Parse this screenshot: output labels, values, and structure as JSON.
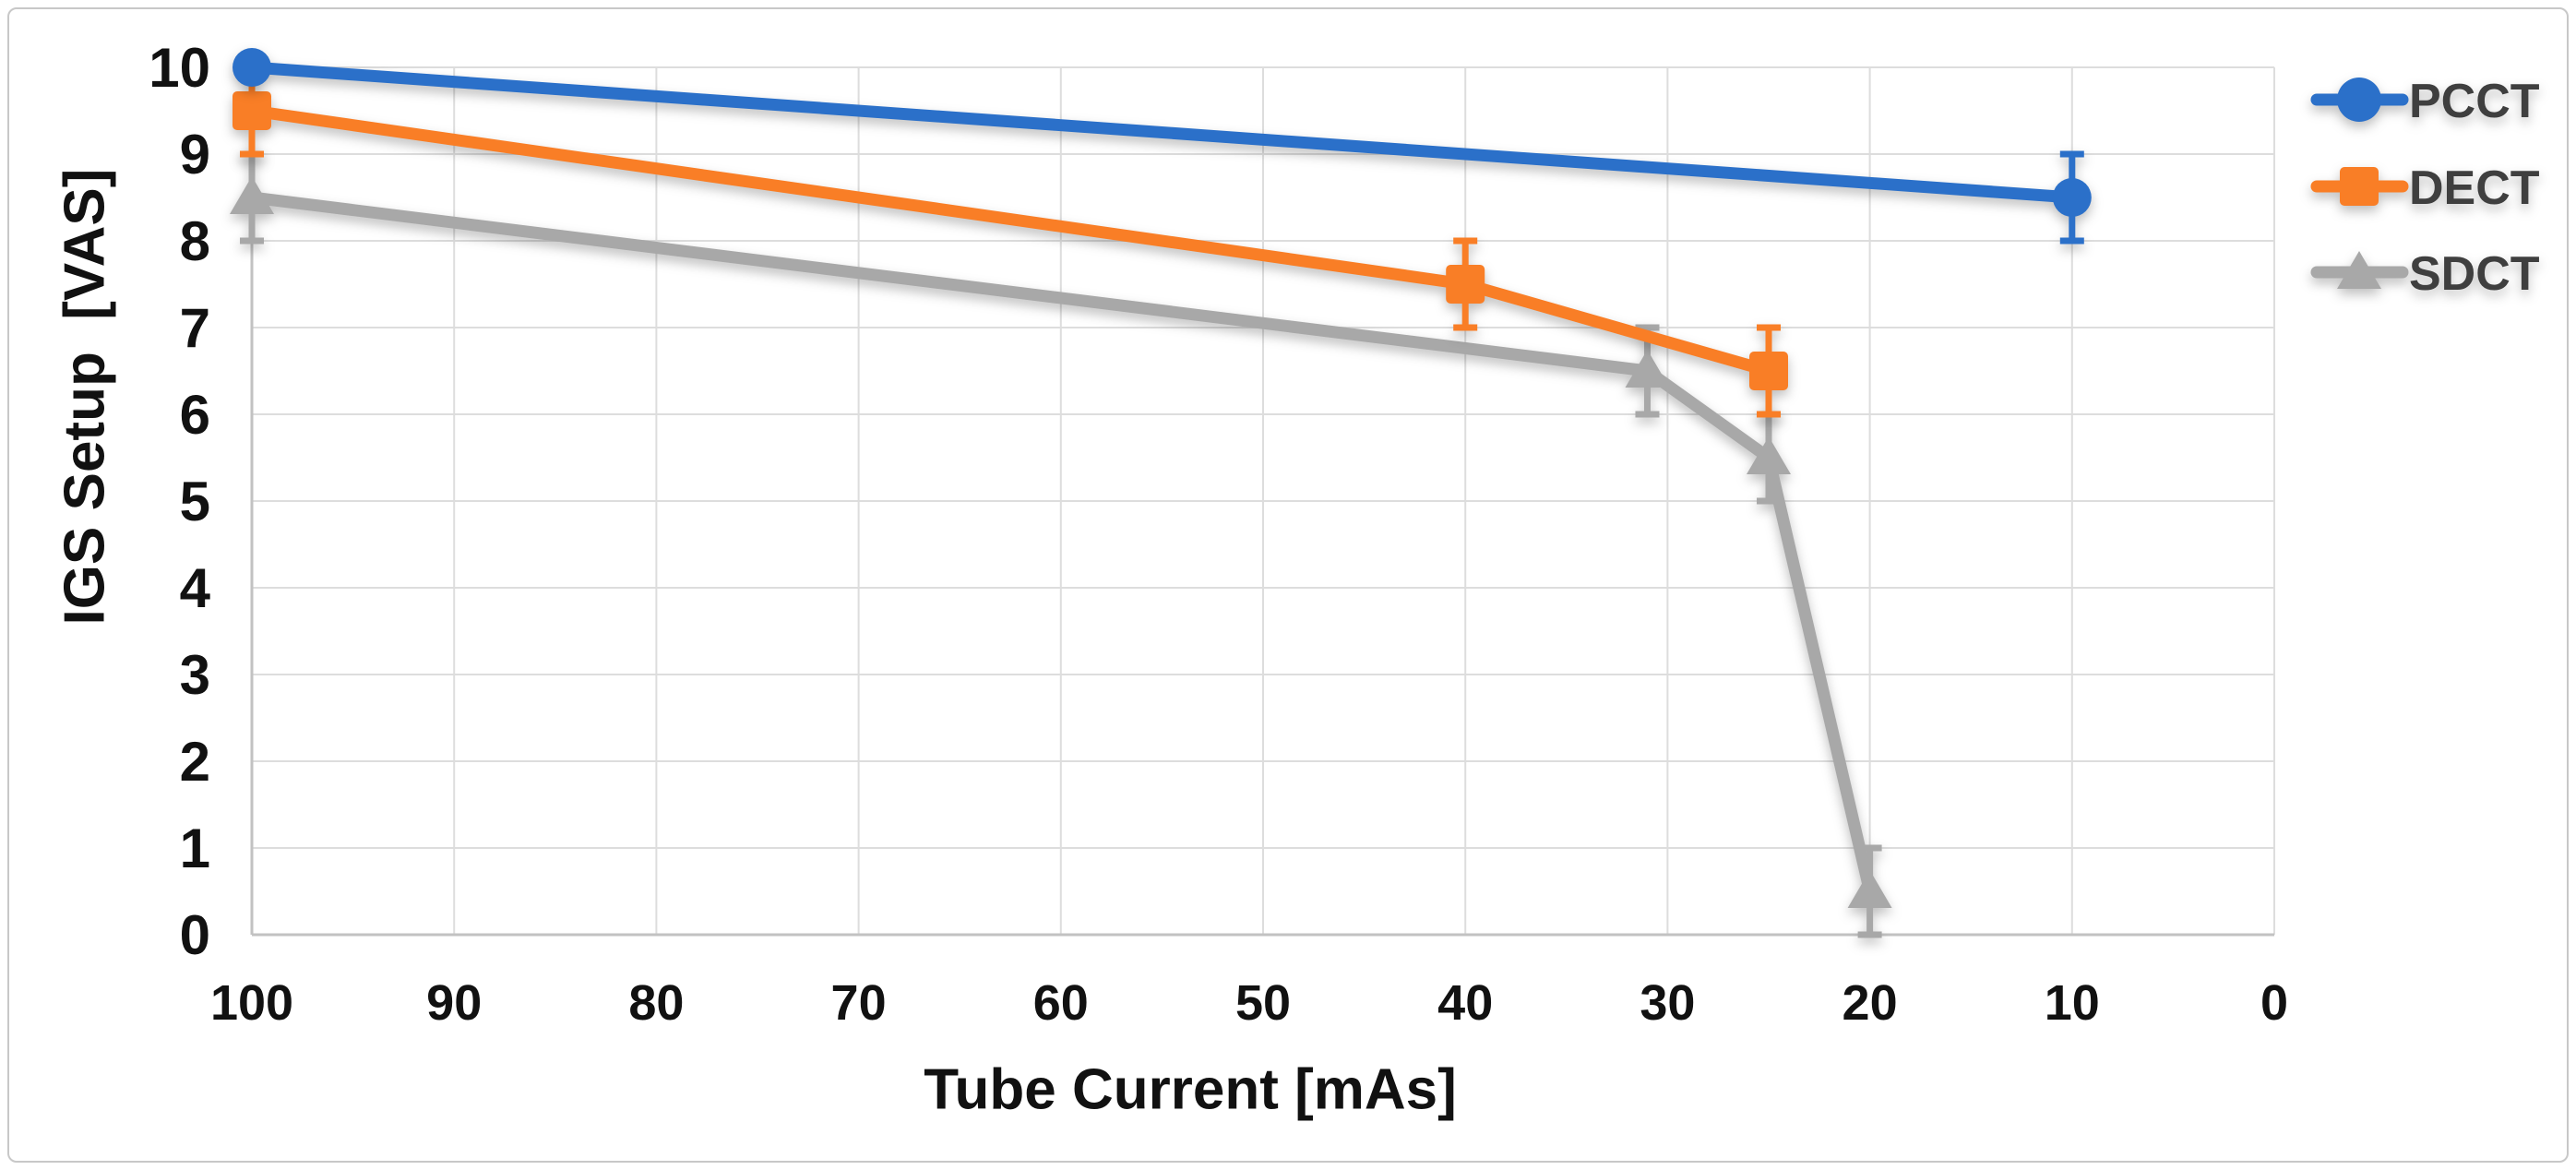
{
  "chart_data": {
    "type": "line",
    "title": "",
    "xlabel": "Tube Current [mAs]",
    "ylabel": "IGS Setup  [VAS]",
    "x_ticks": [
      100,
      90,
      80,
      70,
      60,
      50,
      40,
      30,
      20,
      10,
      0
    ],
    "y_ticks": [
      0,
      1,
      2,
      3,
      4,
      5,
      6,
      7,
      8,
      9,
      10
    ],
    "xlim": [
      100,
      0
    ],
    "ylim": [
      0,
      10
    ],
    "x_axis_reversed": true,
    "grid": true,
    "legend_position": "outside-top-right",
    "legend_order": [
      "PCCT",
      "DECT",
      "SDCT"
    ],
    "series": [
      {
        "name": "SDCT",
        "color": "#A8A8A8",
        "marker": "triangle",
        "points": [
          {
            "x": 100,
            "y": 8.5,
            "err": 0.5
          },
          {
            "x": 31,
            "y": 6.5,
            "err": 0.5
          },
          {
            "x": 25,
            "y": 5.5,
            "err": 0.5
          },
          {
            "x": 20,
            "y": 0.5,
            "err": 0.5
          }
        ]
      },
      {
        "name": "DECT",
        "color": "#F97E26",
        "marker": "square",
        "points": [
          {
            "x": 100,
            "y": 9.5,
            "err": 0.5
          },
          {
            "x": 40,
            "y": 7.5,
            "err": 0.5
          },
          {
            "x": 25,
            "y": 6.5,
            "err": 0.5
          }
        ]
      },
      {
        "name": "PCCT",
        "color": "#2B70C9",
        "marker": "circle",
        "points": [
          {
            "x": 100,
            "y": 10,
            "err": 0
          },
          {
            "x": 10,
            "y": 8.5,
            "err": 0.5
          }
        ]
      }
    ]
  },
  "styles": {
    "background": "#FFFFFF",
    "frame_border_color": "#C8C8C8",
    "gridline_color": "#DDDDDD",
    "axis_line_color": "#C2C2C2",
    "tick_label_color": "#111111",
    "axis_title_color": "#111111",
    "legend_text_color": "#3F3F3F"
  }
}
